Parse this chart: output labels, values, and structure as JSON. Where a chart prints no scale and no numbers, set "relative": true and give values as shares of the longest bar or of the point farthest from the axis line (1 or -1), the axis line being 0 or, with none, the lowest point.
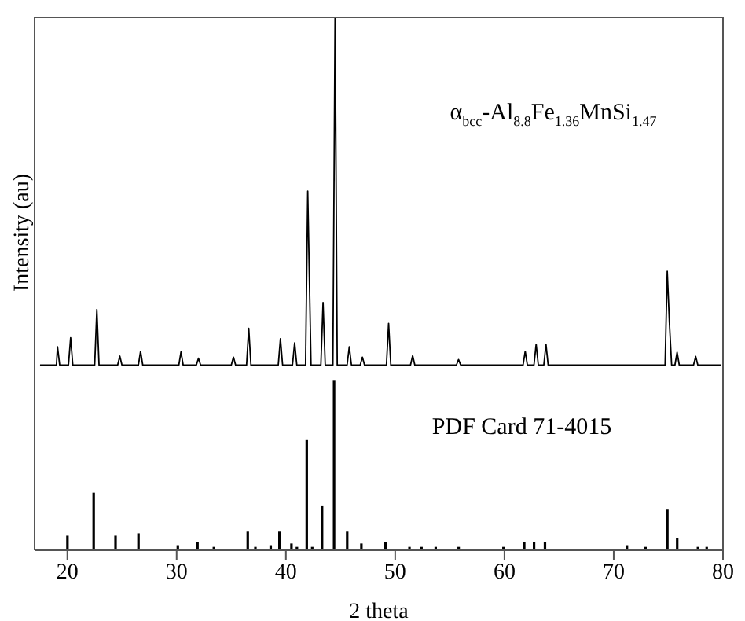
{
  "chart_data": [
    {
      "type": "line",
      "relative": true,
      "ylabel": "Intensity (au)",
      "color": "#000000",
      "xlim": [
        17,
        80
      ],
      "xticks": [
        20,
        30,
        40,
        50,
        60,
        70,
        80
      ],
      "tick_labels": false,
      "annotations": [
        "α$_{bcc}$-Al$_{8.8}$Fe$_{1.36}$MnSi$_{1.47}$"
      ],
      "x": [
        17.5,
        19.0,
        19.1,
        19.3,
        20.1,
        20.3,
        20.5,
        22.5,
        22.7,
        22.9,
        24.6,
        24.8,
        25.0,
        26.5,
        26.7,
        26.9,
        30.2,
        30.4,
        30.6,
        31.8,
        32.0,
        32.2,
        35.0,
        35.2,
        35.4,
        36.4,
        36.6,
        36.8,
        39.3,
        39.5,
        39.7,
        40.6,
        40.8,
        41.0,
        41.8,
        42.0,
        42.3,
        43.2,
        43.4,
        43.6,
        44.3,
        44.5,
        44.7,
        45.6,
        45.8,
        46.0,
        46.8,
        47.0,
        47.2,
        49.2,
        49.4,
        49.6,
        51.4,
        51.6,
        51.8,
        55.6,
        55.8,
        56.0,
        61.7,
        61.9,
        62.1,
        62.7,
        62.9,
        63.1,
        63.6,
        63.8,
        64.0,
        74.7,
        74.9,
        75.1,
        75.3,
        75.6,
        75.8,
        76.0,
        77.3,
        77.5,
        77.7,
        79.8
      ],
      "values": [
        0,
        0,
        0.053,
        0,
        0,
        0.079,
        0,
        0,
        0.16,
        0,
        0,
        0.026,
        0,
        0,
        0.04,
        0,
        0,
        0.038,
        0,
        0,
        0.02,
        0,
        0,
        0.023,
        0,
        0,
        0.106,
        0,
        0,
        0.076,
        0,
        0,
        0.064,
        0,
        0,
        0.5,
        0,
        0,
        0.18,
        0,
        0,
        1,
        0,
        0,
        0.053,
        0,
        0,
        0.023,
        0,
        0,
        0.12,
        0,
        0,
        0.027,
        0,
        0,
        0.016,
        0,
        0,
        0.04,
        0,
        0,
        0.06,
        0,
        0,
        0.06,
        0,
        0,
        0.27,
        0.12,
        0,
        0,
        0.037,
        0,
        0,
        0.025,
        0,
        0
      ]
    },
    {
      "type": "bar",
      "relative": true,
      "xlabel": "2 theta",
      "color": "#000000",
      "xlim": [
        17,
        80
      ],
      "xticks": [
        20,
        30,
        40,
        50,
        60,
        70,
        80
      ],
      "tick_labels": "x",
      "annotations": [
        "PDF Card 71-4015"
      ],
      "x": [
        20.0,
        22.4,
        24.4,
        26.5,
        30.1,
        31.9,
        33.4,
        36.5,
        37.2,
        38.6,
        39.4,
        40.5,
        41.0,
        41.9,
        42.4,
        43.3,
        44.4,
        45.6,
        46.9,
        49.1,
        51.3,
        52.4,
        53.7,
        55.8,
        59.9,
        61.8,
        62.7,
        63.7,
        71.2,
        72.9,
        74.9,
        75.8,
        77.7,
        78.5
      ],
      "values": [
        0.086,
        0.34,
        0.086,
        0.1,
        0.03,
        0.05,
        0.02,
        0.11,
        0.02,
        0.03,
        0.11,
        0.04,
        0.02,
        0.65,
        0.02,
        0.26,
        1,
        0.11,
        0.04,
        0.05,
        0.02,
        0.02,
        0.02,
        0.02,
        0.02,
        0.05,
        0.05,
        0.05,
        0.03,
        0.02,
        0.24,
        0.07,
        0.02,
        0.02
      ]
    }
  ]
}
